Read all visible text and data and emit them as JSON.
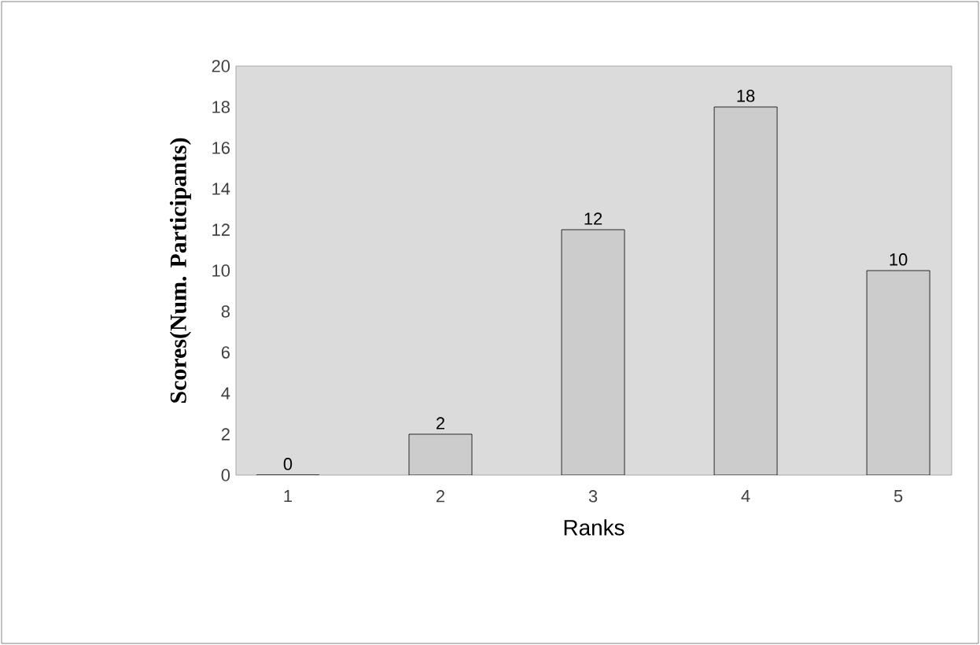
{
  "chart_data": {
    "type": "bar",
    "xlabel": "Ranks",
    "ylabel": "Scores(Num. Participants)",
    "categories": [
      "1",
      "2",
      "3",
      "4",
      "5"
    ],
    "values": [
      0,
      2,
      12,
      18,
      10
    ],
    "color": "#cccccc",
    "ylim": [
      0,
      20
    ],
    "yticks": [
      0,
      2,
      4,
      6,
      8,
      10,
      12,
      14,
      16,
      18,
      20
    ],
    "data_labels": true
  }
}
